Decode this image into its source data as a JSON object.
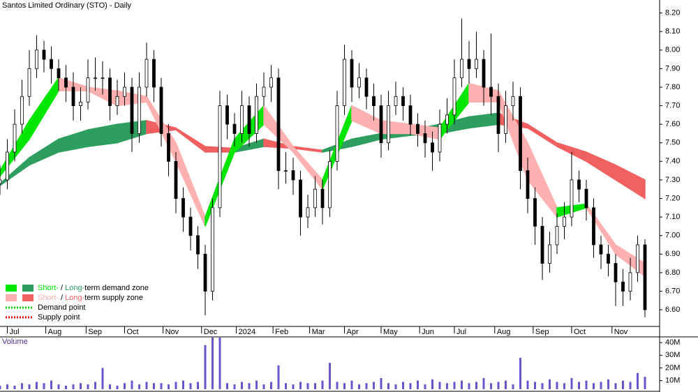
{
  "chart_data": {
    "type": "candlestick",
    "title": "Santos Limited Ordinary (STO) - Daily",
    "x": [
      0,
      4,
      8,
      12,
      16,
      20,
      24,
      28,
      32,
      36,
      40,
      44,
      48,
      52,
      56,
      60,
      64,
      68,
      72,
      76,
      80,
      84,
      88,
      92,
      96,
      100,
      104,
      108,
      112,
      116,
      120,
      124,
      128,
      132,
      136,
      140,
      144,
      148,
      152,
      156,
      160,
      164,
      168,
      172,
      176,
      180,
      184,
      188,
      192,
      196,
      200,
      204,
      208,
      212,
      216,
      220,
      224,
      228,
      232,
      236,
      240,
      244,
      248,
      252,
      256,
      260,
      264,
      268,
      272,
      276,
      280,
      284,
      288,
      292,
      296,
      300,
      304,
      308,
      312,
      316,
      320,
      324,
      328,
      332,
      336,
      340,
      344,
      348,
      352
    ],
    "open": [
      7.28,
      7.3,
      7.45,
      7.6,
      7.75,
      7.9,
      8.0,
      7.95,
      7.9,
      7.85,
      7.8,
      7.7,
      7.72,
      7.85,
      7.85,
      7.85,
      7.7,
      7.75,
      7.8,
      7.55,
      7.8,
      7.95,
      7.8,
      7.55,
      7.4,
      7.2,
      7.1,
      7.0,
      6.9,
      6.7,
      7.15,
      7.7,
      7.6,
      7.55,
      7.7,
      7.55,
      7.75,
      7.8,
      7.85,
      7.35,
      7.35,
      7.3,
      7.1,
      7.15,
      7.25,
      7.15,
      7.4,
      7.7,
      7.95,
      7.8,
      7.85,
      7.75,
      7.7,
      7.5,
      7.7,
      7.75,
      7.7,
      7.6,
      7.55,
      7.5,
      7.45,
      7.6,
      7.65,
      7.85,
      7.95,
      7.9,
      7.95,
      7.8,
      7.75,
      7.55,
      7.7,
      7.75,
      7.35,
      7.2,
      7.05,
      6.85,
      6.95,
      7.05,
      7.1,
      7.3,
      7.25,
      7.15,
      6.95,
      6.9,
      6.85,
      6.75,
      6.7,
      6.8,
      6.95
    ],
    "high": [
      7.38,
      7.52,
      7.68,
      7.84,
      8.0,
      8.08,
      8.05,
      8.02,
      7.95,
      7.92,
      7.88,
      7.8,
      7.95,
      7.96,
      7.94,
      7.9,
      7.84,
      7.88,
      7.85,
      7.88,
      8.04,
      8.0,
      7.85,
      7.6,
      7.45,
      7.26,
      7.15,
      7.05,
      6.95,
      7.2,
      7.78,
      7.76,
      7.66,
      7.78,
      7.75,
      7.82,
      7.88,
      7.92,
      7.9,
      7.45,
      7.42,
      7.35,
      7.22,
      7.32,
      7.3,
      7.46,
      7.78,
      8.03,
      8.0,
      7.93,
      7.9,
      7.82,
      7.76,
      7.78,
      7.83,
      7.8,
      7.76,
      7.66,
      7.62,
      7.56,
      7.68,
      7.74,
      7.95,
      8.17,
      8.05,
      8.1,
      8.0,
      8.09,
      7.82,
      7.78,
      7.83,
      7.8,
      7.42,
      7.26,
      7.1,
      7.02,
      7.12,
      7.18,
      7.45,
      7.35,
      7.3,
      7.2,
      7.0,
      6.95,
      6.9,
      6.82,
      6.88,
      7.0,
      6.98
    ],
    "low": [
      7.22,
      7.25,
      7.4,
      7.55,
      7.7,
      7.85,
      7.88,
      7.82,
      7.78,
      7.72,
      7.62,
      7.62,
      7.68,
      7.78,
      7.76,
      7.62,
      7.65,
      7.7,
      7.45,
      7.5,
      7.75,
      7.72,
      7.48,
      7.32,
      7.12,
      7.02,
      6.92,
      6.82,
      6.57,
      6.65,
      7.1,
      7.52,
      7.48,
      7.5,
      7.48,
      7.5,
      7.7,
      7.72,
      7.25,
      7.28,
      7.22,
      7.0,
      7.04,
      7.1,
      7.06,
      7.1,
      7.35,
      7.65,
      7.72,
      7.74,
      7.68,
      7.62,
      7.42,
      7.46,
      7.65,
      7.62,
      7.54,
      7.48,
      7.42,
      7.35,
      7.4,
      7.55,
      7.6,
      7.8,
      7.82,
      7.85,
      7.7,
      7.65,
      7.45,
      7.5,
      7.62,
      7.25,
      7.12,
      6.95,
      6.76,
      6.8,
      6.9,
      6.98,
      7.05,
      7.18,
      7.08,
      6.88,
      6.82,
      6.78,
      6.62,
      6.62,
      6.65,
      6.75,
      6.56
    ],
    "close": [
      7.3,
      7.45,
      7.6,
      7.75,
      7.9,
      8.0,
      7.95,
      7.9,
      7.85,
      7.8,
      7.7,
      7.72,
      7.85,
      7.85,
      7.85,
      7.7,
      7.75,
      7.8,
      7.55,
      7.8,
      7.95,
      7.8,
      7.55,
      7.4,
      7.2,
      7.1,
      7.0,
      6.9,
      6.7,
      7.15,
      7.7,
      7.6,
      7.55,
      7.7,
      7.55,
      7.75,
      7.8,
      7.85,
      7.35,
      7.35,
      7.3,
      7.1,
      7.15,
      7.25,
      7.15,
      7.4,
      7.7,
      7.95,
      7.8,
      7.85,
      7.75,
      7.7,
      7.5,
      7.7,
      7.75,
      7.7,
      7.6,
      7.55,
      7.5,
      7.45,
      7.6,
      7.65,
      7.85,
      7.95,
      7.9,
      7.95,
      7.8,
      7.75,
      7.55,
      7.7,
      7.75,
      7.35,
      7.2,
      7.05,
      6.85,
      6.95,
      7.05,
      7.1,
      7.3,
      7.25,
      7.15,
      6.95,
      6.9,
      6.85,
      6.75,
      6.7,
      6.8,
      6.95,
      6.6
    ],
    "volume": [
      6,
      7,
      6,
      8,
      7,
      9,
      8,
      10,
      7,
      6,
      7,
      8,
      7,
      9,
      20,
      7,
      6,
      8,
      10,
      7,
      9,
      8,
      8,
      7,
      9,
      10,
      8,
      9,
      38,
      44,
      44,
      8,
      7,
      9,
      8,
      10,
      7,
      9,
      22,
      8,
      7,
      9,
      8,
      8,
      10,
      24,
      9,
      8,
      10,
      7,
      8,
      9,
      12,
      8,
      7,
      9,
      8,
      10,
      7,
      11,
      9,
      8,
      9,
      10,
      8,
      9,
      12,
      8,
      9,
      10,
      7,
      28,
      10,
      9,
      8,
      11,
      9,
      8,
      12,
      9,
      10,
      8,
      9,
      11,
      8,
      10,
      9,
      16,
      13
    ],
    "band_x": [
      0,
      16,
      32,
      48,
      64,
      80,
      96,
      112,
      128,
      144,
      160,
      176,
      192,
      208,
      224,
      240,
      256,
      272,
      288,
      304,
      320,
      336,
      352
    ],
    "short_band": {
      "upper": [
        7.35,
        7.62,
        7.85,
        7.8,
        7.78,
        7.75,
        7.5,
        7.1,
        7.52,
        7.7,
        7.48,
        7.3,
        7.7,
        7.62,
        7.6,
        7.58,
        7.82,
        7.78,
        7.5,
        7.15,
        7.17,
        6.95,
        6.85
      ],
      "lower": [
        7.32,
        7.52,
        7.78,
        7.78,
        7.7,
        7.72,
        7.4,
        7.05,
        7.45,
        7.6,
        7.45,
        7.25,
        7.62,
        7.55,
        7.55,
        7.52,
        7.72,
        7.72,
        7.3,
        7.1,
        7.15,
        6.9,
        6.78
      ],
      "demand_color": "#00e600",
      "supply_color": "#ffb0b0"
    },
    "long_band": {
      "upper": [
        7.28,
        7.42,
        7.52,
        7.57,
        7.6,
        7.62,
        7.58,
        7.48,
        7.47,
        7.52,
        7.48,
        7.46,
        7.52,
        7.55,
        7.57,
        7.6,
        7.64,
        7.66,
        7.6,
        7.5,
        7.45,
        7.38,
        7.3
      ],
      "lower": [
        7.27,
        7.38,
        7.45,
        7.48,
        7.5,
        7.55,
        7.57,
        7.45,
        7.45,
        7.48,
        7.47,
        7.45,
        7.48,
        7.52,
        7.54,
        7.55,
        7.58,
        7.6,
        7.58,
        7.48,
        7.4,
        7.3,
        7.2
      ],
      "demand_color": "#2e9e5e",
      "supply_color": "#f06060"
    },
    "xlim": [
      0,
      360
    ],
    "xticks": [
      {
        "value": 4,
        "label": "Jul"
      },
      {
        "value": 25,
        "label": "Aug"
      },
      {
        "value": 47,
        "label": "Sep"
      },
      {
        "value": 68,
        "label": "Oct"
      },
      {
        "value": 89,
        "label": "Nov"
      },
      {
        "value": 110,
        "label": "Dec"
      },
      {
        "value": 129,
        "label": "2024"
      },
      {
        "value": 149,
        "label": "Feb"
      },
      {
        "value": 169,
        "label": "Mar"
      },
      {
        "value": 188,
        "label": "Apr"
      },
      {
        "value": 208,
        "label": "May"
      },
      {
        "value": 229,
        "label": "Jun"
      },
      {
        "value": 248,
        "label": "Jul"
      },
      {
        "value": 270,
        "label": "Aug"
      },
      {
        "value": 291,
        "label": "Sep"
      },
      {
        "value": 312,
        "label": "Oct"
      },
      {
        "value": 334,
        "label": "Nov"
      }
    ],
    "ylim": [
      6.51,
      8.27
    ],
    "yticks": [
      {
        "value": 6.6,
        "label": "6.60"
      },
      {
        "value": 6.7,
        "label": "6.70"
      },
      {
        "value": 6.8,
        "label": "6.80"
      },
      {
        "value": 6.9,
        "label": "6.90"
      },
      {
        "value": 7.0,
        "label": "7.00"
      },
      {
        "value": 7.1,
        "label": "7.10"
      },
      {
        "value": 7.2,
        "label": "7.20"
      },
      {
        "value": 7.3,
        "label": "7.30"
      },
      {
        "value": 7.4,
        "label": "7.40"
      },
      {
        "value": 7.5,
        "label": "7.50"
      },
      {
        "value": 7.6,
        "label": "7.60"
      },
      {
        "value": 7.7,
        "label": "7.70"
      },
      {
        "value": 7.8,
        "label": "7.80"
      },
      {
        "value": 7.9,
        "label": "7.90"
      },
      {
        "value": 8.0,
        "label": "8.00"
      },
      {
        "value": 8.1,
        "label": "8.10"
      },
      {
        "value": 8.2,
        "label": "8.20"
      }
    ],
    "volume_label": "Volume",
    "volume_color": "#6655cc",
    "volume_ylim": [
      3.2,
      44.5
    ],
    "volume_yticks": [
      {
        "value": 10,
        "label": "10M"
      },
      {
        "value": 20,
        "label": "20M"
      },
      {
        "value": 30,
        "label": "30M"
      },
      {
        "value": 40,
        "label": "40M"
      }
    ],
    "legend": [
      {
        "parts": [
          "Short-",
          " / ",
          "Long-",
          "term demand zone"
        ],
        "colors": [
          "#00e600",
          "#2e9e5e"
        ]
      },
      {
        "parts": [
          "Short-",
          " / ",
          "Long-",
          "term supply zone"
        ],
        "colors": [
          "#ffb0b0",
          "#f06060"
        ]
      },
      {
        "parts": [
          "Demand point"
        ],
        "colors": [
          "#00cc00"
        ]
      },
      {
        "parts": [
          "Supply point"
        ],
        "colors": [
          "#dd0000"
        ]
      }
    ]
  }
}
